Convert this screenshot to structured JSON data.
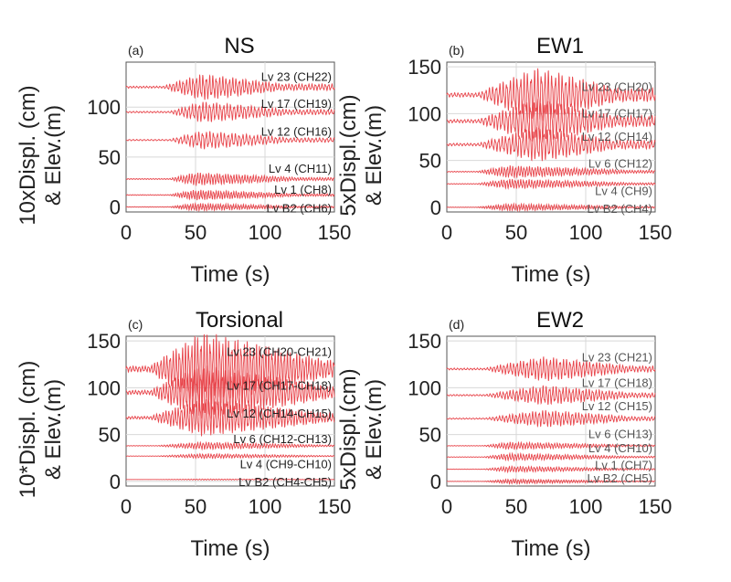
{
  "colors": {
    "trace": "#e8474d",
    "grid": "#d8d8d8",
    "axis": "#555555",
    "label": "#222222",
    "label_dim": "#555555"
  },
  "chart_data": [
    {
      "type": "line",
      "panel": "(a)",
      "title": "NS",
      "xlabel": "Time (s)",
      "ylabel_lines": [
        "10xDispl. (cm)",
        "& Elev.(m)"
      ],
      "xlim": [
        0,
        150
      ],
      "ylim": [
        -5,
        145
      ],
      "xticks": [
        0,
        50,
        100,
        150
      ],
      "yticks": [
        0,
        50,
        100
      ],
      "label_color": "label",
      "series": [
        {
          "name": "Lv 23 (CH22)",
          "elevation": 120,
          "amp": 10,
          "f": 0.42,
          "t0": 25,
          "t1": 110,
          "peak": 55,
          "label_elev": 130
        },
        {
          "name": "Lv 17 (CH19)",
          "elevation": 95,
          "amp": 8,
          "f": 0.4,
          "t0": 30,
          "t1": 115,
          "peak": 55,
          "label_elev": 103
        },
        {
          "name": "Lv 12 (CH16)",
          "elevation": 67,
          "amp": 7,
          "f": 0.38,
          "t0": 30,
          "t1": 115,
          "peak": 55,
          "label_elev": 75
        },
        {
          "name": "Lv 4 (CH11)",
          "elevation": 28,
          "amp": 5,
          "f": 0.5,
          "t0": 30,
          "t1": 120,
          "peak": 50,
          "label_elev": 38
        },
        {
          "name": "Lv 1 (CH8)",
          "elevation": 12,
          "amp": 4,
          "f": 0.55,
          "t0": 30,
          "t1": 120,
          "peak": 50,
          "label_elev": 17
        },
        {
          "name": "Lv B2 (CH6)",
          "elevation": 0,
          "amp": 3,
          "f": 0.55,
          "t0": 30,
          "t1": 120,
          "peak": 50,
          "label_elev": -2
        }
      ]
    },
    {
      "type": "line",
      "panel": "(b)",
      "title": "EW1",
      "xlabel": "Time (s)",
      "ylabel_lines": [
        "5xDispl.(cm)",
        "& Elev.(m)"
      ],
      "xlim": [
        0,
        150
      ],
      "ylim": [
        -5,
        155
      ],
      "xticks": [
        0,
        50,
        100,
        150
      ],
      "yticks": [
        0,
        50,
        100,
        150
      ],
      "label_color": "label_dim",
      "series": [
        {
          "name": "Lv 23 (CH20)",
          "elevation": 120,
          "amp": 22,
          "f": 0.4,
          "t0": 20,
          "t1": 120,
          "peak": 65,
          "label_elev": 128
        },
        {
          "name": "Lv 17 (CH17)",
          "elevation": 92,
          "amp": 18,
          "f": 0.4,
          "t0": 20,
          "t1": 120,
          "peak": 65,
          "label_elev": 100
        },
        {
          "name": "Lv 12 (CH14)",
          "elevation": 67,
          "amp": 14,
          "f": 0.4,
          "t0": 20,
          "t1": 120,
          "peak": 65,
          "label_elev": 75
        },
        {
          "name": "Lv 6 (CH12)",
          "elevation": 38,
          "amp": 5,
          "f": 0.5,
          "t0": 20,
          "t1": 130,
          "peak": 45,
          "label_elev": 46
        },
        {
          "name": "Lv 4 (CH9)",
          "elevation": 25,
          "amp": 4,
          "f": 0.5,
          "t0": 20,
          "t1": 130,
          "peak": 45,
          "label_elev": 17
        },
        {
          "name": "Lv B2 (CH4)",
          "elevation": 0,
          "amp": 3,
          "f": 0.55,
          "t0": 20,
          "t1": 130,
          "peak": 45,
          "label_elev": -2
        }
      ]
    },
    {
      "type": "line",
      "panel": "(c)",
      "title": "Torsional",
      "xlabel": "Time (s)",
      "ylabel_lines": [
        "10*Displ. (cm)",
        "& Elev.(m)"
      ],
      "xlim": [
        0,
        150
      ],
      "ylim": [
        -5,
        155
      ],
      "xticks": [
        0,
        50,
        100,
        150
      ],
      "yticks": [
        0,
        50,
        100,
        150
      ],
      "label_color": "label",
      "series": [
        {
          "name": "Lv 23 (CH20-CH21)",
          "elevation": 120,
          "amp": 30,
          "f": 0.45,
          "t0": 15,
          "t1": 140,
          "peak": 55,
          "label_elev": 138
        },
        {
          "name": "Lv 17 (CH17-CH18)",
          "elevation": 95,
          "amp": 22,
          "f": 0.45,
          "t0": 15,
          "t1": 140,
          "peak": 55,
          "label_elev": 102
        },
        {
          "name": "Lv 12 (CH14-CH15)",
          "elevation": 68,
          "amp": 15,
          "f": 0.45,
          "t0": 15,
          "t1": 140,
          "peak": 55,
          "label_elev": 72
        },
        {
          "name": "Lv 6 (CH12-CH13)",
          "elevation": 38,
          "amp": 3,
          "f": 0.5,
          "t0": 20,
          "t1": 140,
          "peak": 55,
          "label_elev": 45
        },
        {
          "name": "Lv 4 (CH9-CH10)",
          "elevation": 27,
          "amp": 2,
          "f": 0.5,
          "t0": 20,
          "t1": 140,
          "peak": 55,
          "label_elev": 18
        },
        {
          "name": "Lv B2 (CH4-CH5)",
          "elevation": 2,
          "amp": 0.5,
          "f": 0.5,
          "t0": 20,
          "t1": 140,
          "peak": 55,
          "label_elev": -1
        }
      ]
    },
    {
      "type": "line",
      "panel": "(d)",
      "title": "EW2",
      "xlabel": "Time (s)",
      "ylabel_lines": [
        "5xDispl.(cm)",
        "& Elev.(m)"
      ],
      "xlim": [
        0,
        150
      ],
      "ylim": [
        -5,
        155
      ],
      "xticks": [
        0,
        50,
        100,
        150
      ],
      "yticks": [
        0,
        50,
        100,
        150
      ],
      "label_color": "label_dim",
      "series": [
        {
          "name": "Lv 23 (CH21)",
          "elevation": 120,
          "amp": 10,
          "f": 0.42,
          "t0": 25,
          "t1": 130,
          "peak": 70,
          "label_elev": 132
        },
        {
          "name": "Lv 17 (CH18)",
          "elevation": 92,
          "amp": 8,
          "f": 0.42,
          "t0": 25,
          "t1": 130,
          "peak": 70,
          "label_elev": 105
        },
        {
          "name": "Lv 12 (CH15)",
          "elevation": 67,
          "amp": 7,
          "f": 0.42,
          "t0": 25,
          "t1": 130,
          "peak": 70,
          "label_elev": 80
        },
        {
          "name": "Lv 6 (CH13)",
          "elevation": 38,
          "amp": 3,
          "f": 0.5,
          "t0": 25,
          "t1": 130,
          "peak": 45,
          "label_elev": 50
        },
        {
          "name": "Lv 4 (CH10)",
          "elevation": 26,
          "amp": 3,
          "f": 0.5,
          "t0": 25,
          "t1": 130,
          "peak": 45,
          "label_elev": 35
        },
        {
          "name": "Lv 1 (CH7)",
          "elevation": 13,
          "amp": 2.5,
          "f": 0.5,
          "t0": 25,
          "t1": 130,
          "peak": 45,
          "label_elev": 17
        },
        {
          "name": "Lv B2 (CH5)",
          "elevation": 0,
          "amp": 2,
          "f": 0.55,
          "t0": 25,
          "t1": 130,
          "peak": 45,
          "label_elev": 3
        }
      ]
    }
  ]
}
